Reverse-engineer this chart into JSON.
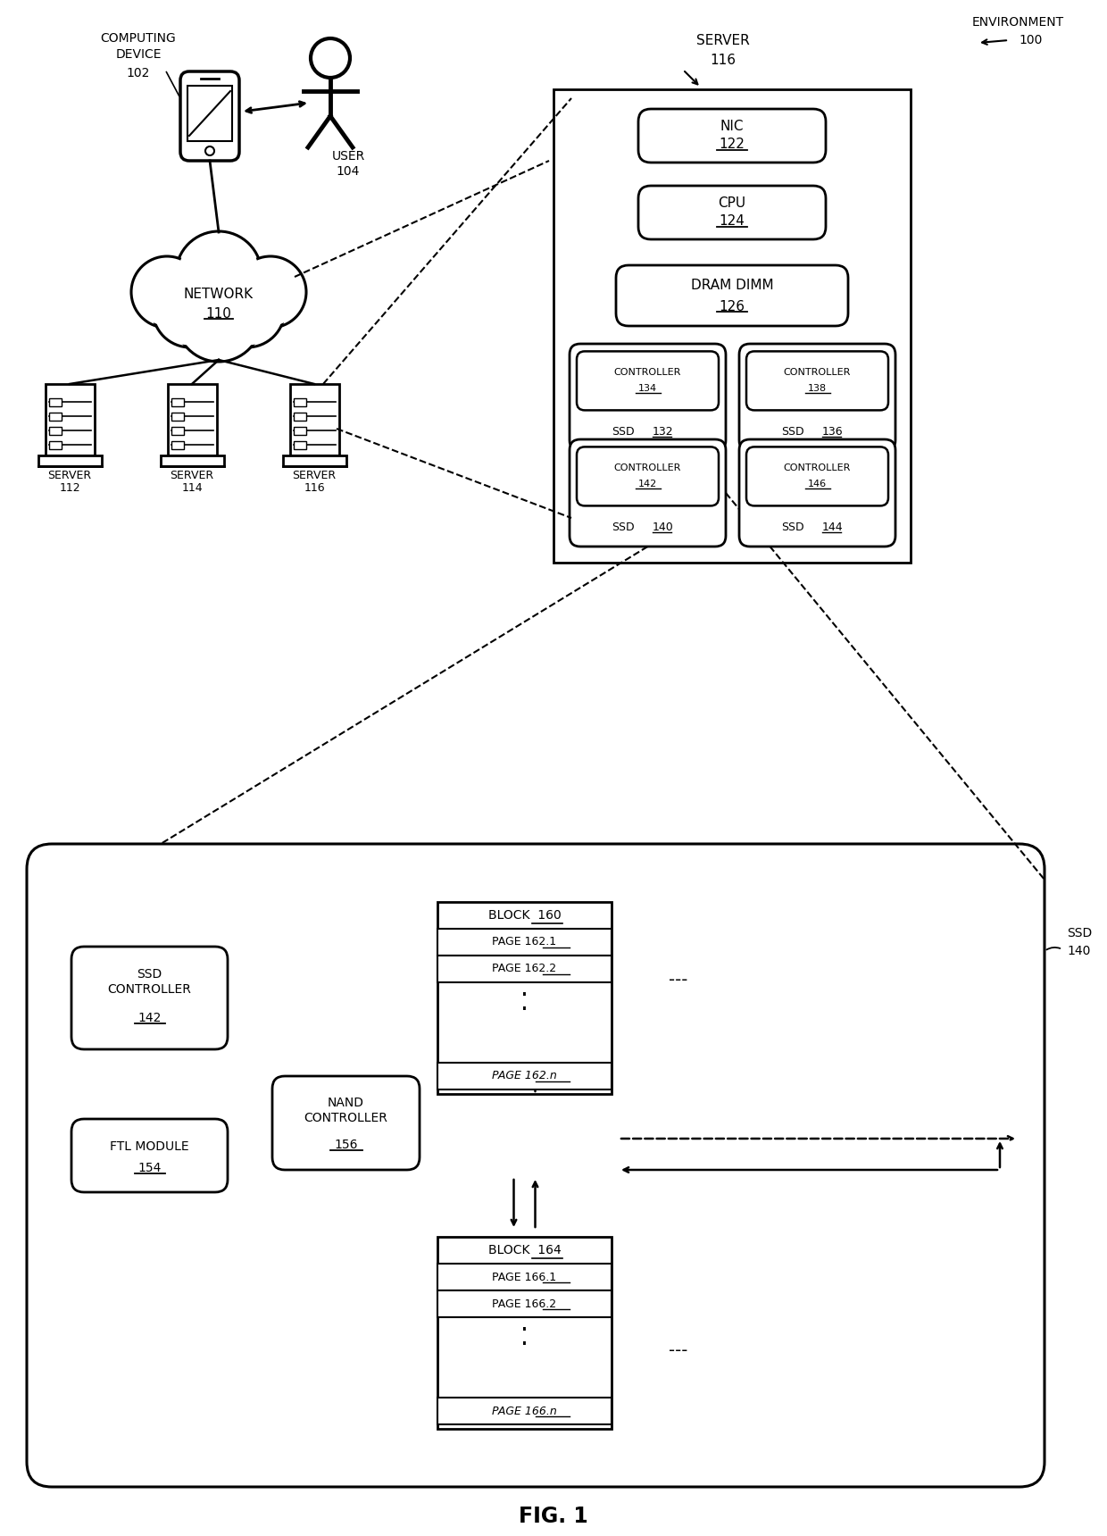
{
  "title": "FIG. 1",
  "bg_color": "#ffffff",
  "environment_label": "ENVIRONMENT",
  "environment_num": "100",
  "computing_device_label": "COMPUTING\nDEVICE",
  "computing_device_num": "102",
  "user_label": "USER",
  "user_num": "104",
  "network_label": "NETWORK",
  "network_num": "110",
  "server116_label": "SERVER",
  "server116_num": "116",
  "server112_label": "SERVER",
  "server112_num": "112",
  "server114_label": "SERVER",
  "server114_num": "114",
  "nic_label": "NIC",
  "nic_num": "122",
  "cpu_label": "CPU",
  "cpu_num": "124",
  "dram_label": "DRAM DIMM",
  "dram_num": "126",
  "ctrl134_label": "CONTROLLER",
  "ctrl134_num": "134",
  "ssd132_label": "SSD",
  "ssd132_num": "132",
  "ctrl138_label": "CONTROLLER",
  "ctrl138_num": "138",
  "ssd136_label": "SSD",
  "ssd136_num": "136",
  "ctrl142_label": "CONTROLLER",
  "ctrl142_num": "142",
  "ssd140_label": "SSD",
  "ssd140_num": "140",
  "ctrl146_label": "CONTROLLER",
  "ctrl146_num": "146",
  "ssd144_label": "SSD",
  "ssd144_num": "144",
  "ssd_ctrl_label": "SSD\nCONTROLLER",
  "ssd_ctrl_num": "142",
  "ftl_label": "FTL MODULE",
  "ftl_num": "154",
  "nand_ctrl_label": "NAND\nCONTROLLER",
  "nand_ctrl_num": "156",
  "block160_label": "BLOCK",
  "block160_num": "160",
  "page162_1": "PAGE 162.1",
  "page162_2": "PAGE 162.2",
  "page162_n": "PAGE 162.n",
  "block164_label": "BLOCK",
  "block164_num": "164",
  "page166_1": "PAGE 166.1",
  "page166_2": "PAGE 166.2",
  "page166_n": "PAGE 166.n",
  "ssd_outer_label": "SSD",
  "ssd_outer_num": "140"
}
